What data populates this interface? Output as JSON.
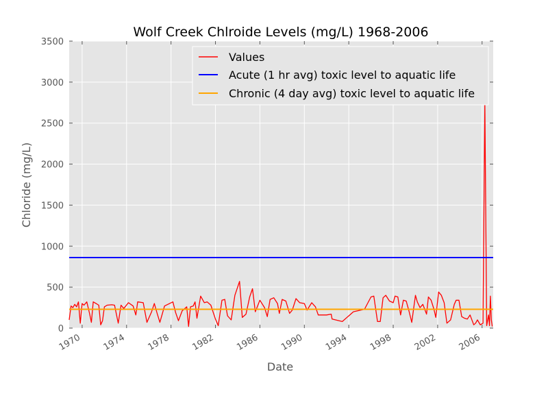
{
  "chart_data": {
    "type": "line",
    "title": "Wolf Creek Chlroide Levels (mg/L) 1968-2006",
    "xlabel": "Date",
    "ylabel": "Chloride (mg/L)",
    "xlim": [
      "1968-11-01",
      "2007-01-01"
    ],
    "ylim": [
      0,
      3500
    ],
    "x_ticks": [
      "1970",
      "1974",
      "1978",
      "1982",
      "1986",
      "1990",
      "1994",
      "1998",
      "2002",
      "2006"
    ],
    "y_ticks": [
      0,
      500,
      1000,
      1500,
      2000,
      2500,
      3000,
      3500
    ],
    "grid": true,
    "legend_position": "top-right",
    "series": [
      {
        "name": "Values",
        "color": "#ff0000",
        "points": [
          [
            "1968-11-01",
            100
          ],
          [
            "1969-01-01",
            270
          ],
          [
            "1969-03-01",
            250
          ],
          [
            "1969-05-01",
            290
          ],
          [
            "1969-07-01",
            260
          ],
          [
            "1969-09-01",
            320
          ],
          [
            "1969-11-01",
            60
          ],
          [
            "1970-01-01",
            300
          ],
          [
            "1970-03-01",
            280
          ],
          [
            "1970-06-01",
            320
          ],
          [
            "1970-09-01",
            180
          ],
          [
            "1970-11-01",
            70
          ],
          [
            "1971-01-01",
            320
          ],
          [
            "1971-04-01",
            300
          ],
          [
            "1971-07-01",
            280
          ],
          [
            "1971-09-01",
            40
          ],
          [
            "1971-11-01",
            90
          ],
          [
            "1972-01-01",
            260
          ],
          [
            "1972-04-01",
            280
          ],
          [
            "1972-09-01",
            285
          ],
          [
            "1972-12-01",
            280
          ],
          [
            "1973-04-01",
            60
          ],
          [
            "1973-07-01",
            280
          ],
          [
            "1973-10-01",
            240
          ],
          [
            "1974-03-01",
            310
          ],
          [
            "1974-08-01",
            270
          ],
          [
            "1974-11-01",
            160
          ],
          [
            "1975-01-01",
            320
          ],
          [
            "1975-07-01",
            310
          ],
          [
            "1975-11-01",
            70
          ],
          [
            "1976-04-01",
            200
          ],
          [
            "1976-07-01",
            300
          ],
          [
            "1976-10-01",
            180
          ],
          [
            "1977-01-01",
            70
          ],
          [
            "1977-06-01",
            270
          ],
          [
            "1978-03-01",
            320
          ],
          [
            "1978-06-01",
            190
          ],
          [
            "1978-09-01",
            90
          ],
          [
            "1979-01-01",
            210
          ],
          [
            "1979-06-01",
            260
          ],
          [
            "1979-08-01",
            20
          ],
          [
            "1979-10-01",
            260
          ],
          [
            "1980-01-01",
            270
          ],
          [
            "1980-03-01",
            320
          ],
          [
            "1980-05-01",
            120
          ],
          [
            "1980-09-01",
            390
          ],
          [
            "1981-01-01",
            310
          ],
          [
            "1981-04-01",
            320
          ],
          [
            "1981-08-01",
            280
          ],
          [
            "1982-01-01",
            110
          ],
          [
            "1982-04-01",
            30
          ],
          [
            "1982-08-01",
            340
          ],
          [
            "1982-11-01",
            350
          ],
          [
            "1983-02-01",
            150
          ],
          [
            "1983-06-01",
            100
          ],
          [
            "1983-10-01",
            400
          ],
          [
            "1984-03-01",
            570
          ],
          [
            "1984-06-01",
            130
          ],
          [
            "1984-10-01",
            170
          ],
          [
            "1985-02-01",
            380
          ],
          [
            "1985-05-01",
            480
          ],
          [
            "1985-08-01",
            200
          ],
          [
            "1986-01-01",
            340
          ],
          [
            "1986-06-01",
            250
          ],
          [
            "1986-09-01",
            140
          ],
          [
            "1986-12-01",
            350
          ],
          [
            "1987-04-01",
            370
          ],
          [
            "1987-08-01",
            300
          ],
          [
            "1987-10-01",
            180
          ],
          [
            "1988-01-01",
            350
          ],
          [
            "1988-05-01",
            330
          ],
          [
            "1988-09-01",
            180
          ],
          [
            "1988-12-01",
            220
          ],
          [
            "1989-04-01",
            360
          ],
          [
            "1989-08-01",
            310
          ],
          [
            "1990-01-01",
            300
          ],
          [
            "1990-04-01",
            220
          ],
          [
            "1990-09-01",
            310
          ],
          [
            "1991-01-01",
            260
          ],
          [
            "1991-04-01",
            160
          ],
          [
            "1992-01-01",
            160
          ],
          [
            "1992-06-01",
            170
          ],
          [
            "1992-07-01",
            110
          ],
          [
            "1993-06-01",
            80
          ],
          [
            "1994-06-01",
            200
          ],
          [
            "1995-06-01",
            230
          ],
          [
            "1996-01-01",
            380
          ],
          [
            "1996-04-01",
            390
          ],
          [
            "1996-08-01",
            80
          ],
          [
            "1996-11-01",
            80
          ],
          [
            "1997-02-01",
            370
          ],
          [
            "1997-05-01",
            400
          ],
          [
            "1997-09-01",
            330
          ],
          [
            "1998-01-01",
            310
          ],
          [
            "1998-03-01",
            390
          ],
          [
            "1998-06-01",
            380
          ],
          [
            "1998-09-01",
            160
          ],
          [
            "1998-12-01",
            340
          ],
          [
            "1999-03-01",
            330
          ],
          [
            "1999-06-01",
            210
          ],
          [
            "1999-09-01",
            70
          ],
          [
            "2000-01-01",
            400
          ],
          [
            "2000-03-01",
            320
          ],
          [
            "2000-06-01",
            250
          ],
          [
            "2000-09-01",
            290
          ],
          [
            "2001-01-01",
            170
          ],
          [
            "2001-03-01",
            380
          ],
          [
            "2001-06-01",
            340
          ],
          [
            "2001-09-01",
            230
          ],
          [
            "2001-11-01",
            130
          ],
          [
            "2002-02-01",
            440
          ],
          [
            "2002-05-01",
            400
          ],
          [
            "2002-08-01",
            310
          ],
          [
            "2002-11-01",
            60
          ],
          [
            "2003-03-01",
            100
          ],
          [
            "2003-07-01",
            290
          ],
          [
            "2003-09-01",
            340
          ],
          [
            "2003-12-01",
            340
          ],
          [
            "2004-03-01",
            140
          ],
          [
            "2004-06-01",
            120
          ],
          [
            "2004-09-01",
            110
          ],
          [
            "2004-12-01",
            160
          ],
          [
            "2005-04-01",
            40
          ],
          [
            "2005-06-01",
            60
          ],
          [
            "2005-08-01",
            100
          ],
          [
            "2005-11-01",
            40
          ],
          [
            "2006-02-01",
            60
          ],
          [
            "2006-04-01",
            2750
          ],
          [
            "2006-06-01",
            30
          ],
          [
            "2006-08-01",
            160
          ],
          [
            "2006-09-01",
            30
          ],
          [
            "2006-10-01",
            390
          ],
          [
            "2006-11-01",
            100
          ],
          [
            "2006-12-01",
            20
          ]
        ]
      },
      {
        "name": "Acute (1 hr avg) toxic level to aquatic life",
        "color": "#0000ff",
        "constant": 860
      },
      {
        "name": "Chronic (4 day avg) toxic level to aquatic life",
        "color": "#ffa500",
        "constant": 230
      }
    ]
  }
}
